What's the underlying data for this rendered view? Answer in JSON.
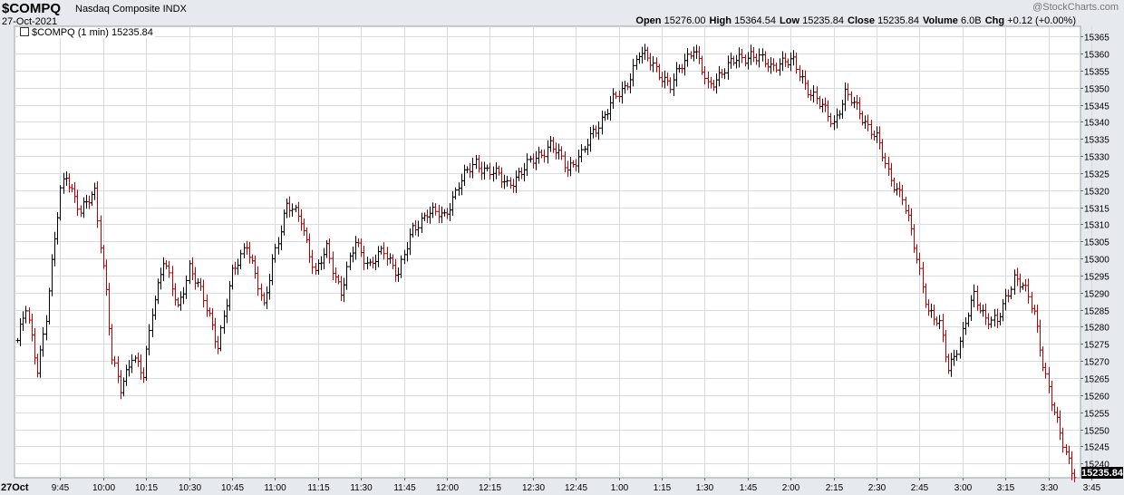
{
  "header": {
    "symbol": "$COMPQ",
    "name": "Nasdaq Composite INDX",
    "date": "27-Oct-2021",
    "copyright": "@StockCharts.com",
    "open_label": "Open",
    "open": "15276.00",
    "high_label": "High",
    "high": "15364.54",
    "low_label": "Low",
    "low": "15235.84",
    "close_label": "Close",
    "close": "15235.84",
    "volume_label": "Volume",
    "volume": "6.0B",
    "chg_label": "Chg",
    "chg": "+0.12 (+0.00%)"
  },
  "legend": {
    "text": "$COMPQ (1 min) 15235.84"
  },
  "colors": {
    "up": "#000000",
    "down": "#c00000",
    "grid": "#d8dbe0",
    "last_box": "#000000"
  },
  "chart_data": {
    "type": "ohlc",
    "interval": "1 min",
    "last_value": "15235.84",
    "date_label": "27Oct",
    "y_ticks": [
      15240,
      15245,
      15250,
      15255,
      15260,
      15265,
      15270,
      15275,
      15280,
      15285,
      15290,
      15295,
      15300,
      15305,
      15310,
      15315,
      15320,
      15325,
      15330,
      15335,
      15340,
      15345,
      15350,
      15355,
      15360,
      15365
    ],
    "ylim": [
      15235.8,
      15368
    ],
    "x_ticks": [
      "9:45",
      "10:00",
      "10:15",
      "10:30",
      "10:45",
      "11:00",
      "11:15",
      "11:30",
      "11:45",
      "12:00",
      "12:15",
      "12:30",
      "12:45",
      "1:00",
      "1:15",
      "1:30",
      "1:45",
      "2:00",
      "2:15",
      "2:30",
      "2:45",
      "3:00",
      "3:15",
      "3:30",
      "3:45"
    ],
    "x_tick_minutes": [
      15,
      30,
      45,
      60,
      75,
      90,
      105,
      120,
      135,
      150,
      165,
      180,
      195,
      210,
      225,
      240,
      255,
      270,
      285,
      300,
      315,
      330,
      345,
      360,
      375
    ],
    "anchors": [
      [
        0,
        15276
      ],
      [
        3,
        15285
      ],
      [
        7,
        15268
      ],
      [
        10,
        15283
      ],
      [
        13,
        15305
      ],
      [
        15,
        15320
      ],
      [
        17,
        15325
      ],
      [
        22,
        15313
      ],
      [
        27,
        15320
      ],
      [
        31,
        15290
      ],
      [
        33,
        15270
      ],
      [
        36,
        15262
      ],
      [
        40,
        15272
      ],
      [
        44,
        15265
      ],
      [
        47,
        15285
      ],
      [
        51,
        15300
      ],
      [
        56,
        15285
      ],
      [
        60,
        15298
      ],
      [
        63,
        15292
      ],
      [
        67,
        15283
      ],
      [
        70,
        15275
      ],
      [
        75,
        15295
      ],
      [
        80,
        15305
      ],
      [
        83,
        15295
      ],
      [
        86,
        15285
      ],
      [
        89,
        15300
      ],
      [
        94,
        15315
      ],
      [
        99,
        15312
      ],
      [
        104,
        15295
      ],
      [
        108,
        15303
      ],
      [
        113,
        15290
      ],
      [
        118,
        15305
      ],
      [
        123,
        15298
      ],
      [
        128,
        15302
      ],
      [
        133,
        15296
      ],
      [
        138,
        15308
      ],
      [
        143,
        15314
      ],
      [
        149,
        15312
      ],
      [
        154,
        15322
      ],
      [
        160,
        15328
      ],
      [
        166,
        15325
      ],
      [
        171,
        15322
      ],
      [
        176,
        15325
      ],
      [
        181,
        15330
      ],
      [
        186,
        15333
      ],
      [
        192,
        15327
      ],
      [
        197,
        15330
      ],
      [
        201,
        15337
      ],
      [
        207,
        15345
      ],
      [
        212,
        15350
      ],
      [
        217,
        15360
      ],
      [
        222,
        15357
      ],
      [
        228,
        15350
      ],
      [
        232,
        15357
      ],
      [
        236,
        15362
      ],
      [
        241,
        15350
      ],
      [
        246,
        15355
      ],
      [
        251,
        15358
      ],
      [
        256,
        15360
      ],
      [
        263,
        15356
      ],
      [
        266,
        15358
      ],
      [
        271,
        15357
      ],
      [
        276,
        15350
      ],
      [
        280,
        15345
      ],
      [
        285,
        15340
      ],
      [
        289,
        15348
      ],
      [
        294,
        15343
      ],
      [
        300,
        15335
      ],
      [
        304,
        15325
      ],
      [
        309,
        15318
      ],
      [
        314,
        15300
      ],
      [
        318,
        15285
      ],
      [
        322,
        15280
      ],
      [
        325,
        15268
      ],
      [
        330,
        15278
      ],
      [
        334,
        15289
      ],
      [
        338,
        15283
      ],
      [
        342,
        15281
      ],
      [
        345,
        15288
      ],
      [
        348,
        15295
      ],
      [
        351,
        15292
      ],
      [
        355,
        15284
      ],
      [
        358,
        15270
      ],
      [
        361,
        15258
      ],
      [
        364,
        15248
      ],
      [
        367,
        15241
      ],
      [
        369,
        15236
      ]
    ]
  }
}
